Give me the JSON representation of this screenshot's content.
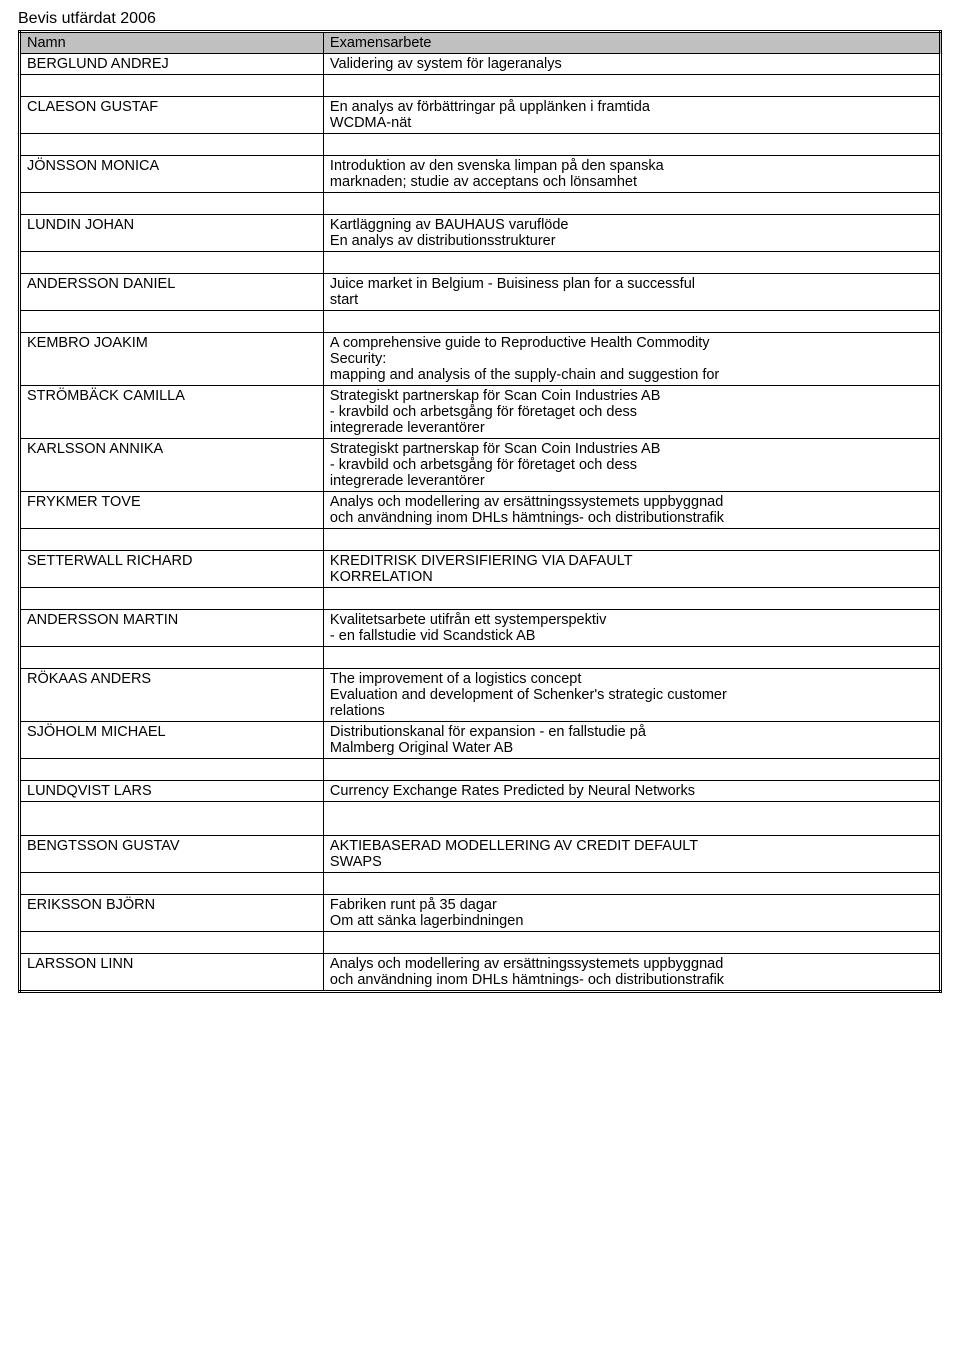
{
  "title": "Bevis utfärdat 2006",
  "headers": {
    "name": "Namn",
    "work": "Examensarbete"
  },
  "rows": [
    {
      "name": "BERGLUND ANDREJ",
      "desc": "Validering av system för lageranalys",
      "gap_after": true
    },
    {
      "name": "CLAESON GUSTAF",
      "desc": "En analys av förbättringar på upplänken i framtida\nWCDMA-nät",
      "gap_after": true
    },
    {
      "name": "JÖNSSON MONICA",
      "desc": "Introduktion av den svenska limpan på den spanska\nmarknaden; studie av acceptans och lönsamhet",
      "gap_after": true
    },
    {
      "name": "LUNDIN JOHAN",
      "desc": "Kartläggning av BAUHAUS varuflöde\nEn analys av distributionsstrukturer",
      "gap_after": true
    },
    {
      "name": "ANDERSSON DANIEL",
      "desc": "Juice market in Belgium - Buisiness plan for a successful\nstart",
      "gap_after": true
    },
    {
      "name": "KEMBRO JOAKIM",
      "desc": "A comprehensive guide to Reproductive Health Commodity\nSecurity:\nmapping and analysis of the supply-chain and suggestion for",
      "gap_after": false
    },
    {
      "name": "STRÖMBÄCK CAMILLA",
      "desc": "Strategiskt partnerskap för Scan Coin Industries AB\n- kravbild och arbetsgång för företaget och dess\nintegrerade leverantörer",
      "gap_after": false
    },
    {
      "name": "KARLSSON ANNIKA",
      "desc": "Strategiskt partnerskap för Scan Coin Industries AB\n- kravbild och arbetsgång för företaget och dess\nintegrerade leverantörer",
      "gap_after": false
    },
    {
      "name": "FRYKMER TOVE",
      "desc": "Analys och modellering av ersättningssystemets uppbyggnad\noch användning inom DHLs hämtnings- och distributionstrafik",
      "gap_after": true
    },
    {
      "name": "SETTERWALL RICHARD",
      "desc": "KREDITRISK DIVERSIFIERING VIA DAFAULT\nKORRELATION",
      "gap_after": true
    },
    {
      "name": "ANDERSSON MARTIN",
      "desc": "Kvalitetsarbete utifrån ett systemperspektiv\n- en fallstudie vid Scandstick AB",
      "gap_after": true
    },
    {
      "name": "RÖKAAS ANDERS",
      "desc": "The improvement of a logistics concept\nEvaluation and development of Schenker's strategic customer\nrelations",
      "gap_after": false
    },
    {
      "name": "SJÖHOLM MICHAEL",
      "desc": "Distributionskanal för expansion - en fallstudie på\nMalmberg Original Water AB",
      "gap_after": true
    },
    {
      "name": "LUNDQVIST LARS",
      "desc": "Currency Exchange Rates Predicted by Neural Networks",
      "gap_after": true,
      "tall_gap": true
    },
    {
      "name": "BENGTSSON GUSTAV",
      "desc": "AKTIEBASERAD MODELLERING AV CREDIT DEFAULT\nSWAPS",
      "gap_after": true
    },
    {
      "name": "ERIKSSON BJÖRN",
      "desc": "Fabriken runt på 35 dagar\nOm att sänka lagerbindningen",
      "gap_after": true
    },
    {
      "name": "LARSSON LINN",
      "desc": "Analys och modellering av ersättningssystemets uppbyggnad\noch användning inom DHLs hämtnings- och distributionstrafik",
      "gap_after": false
    }
  ]
}
